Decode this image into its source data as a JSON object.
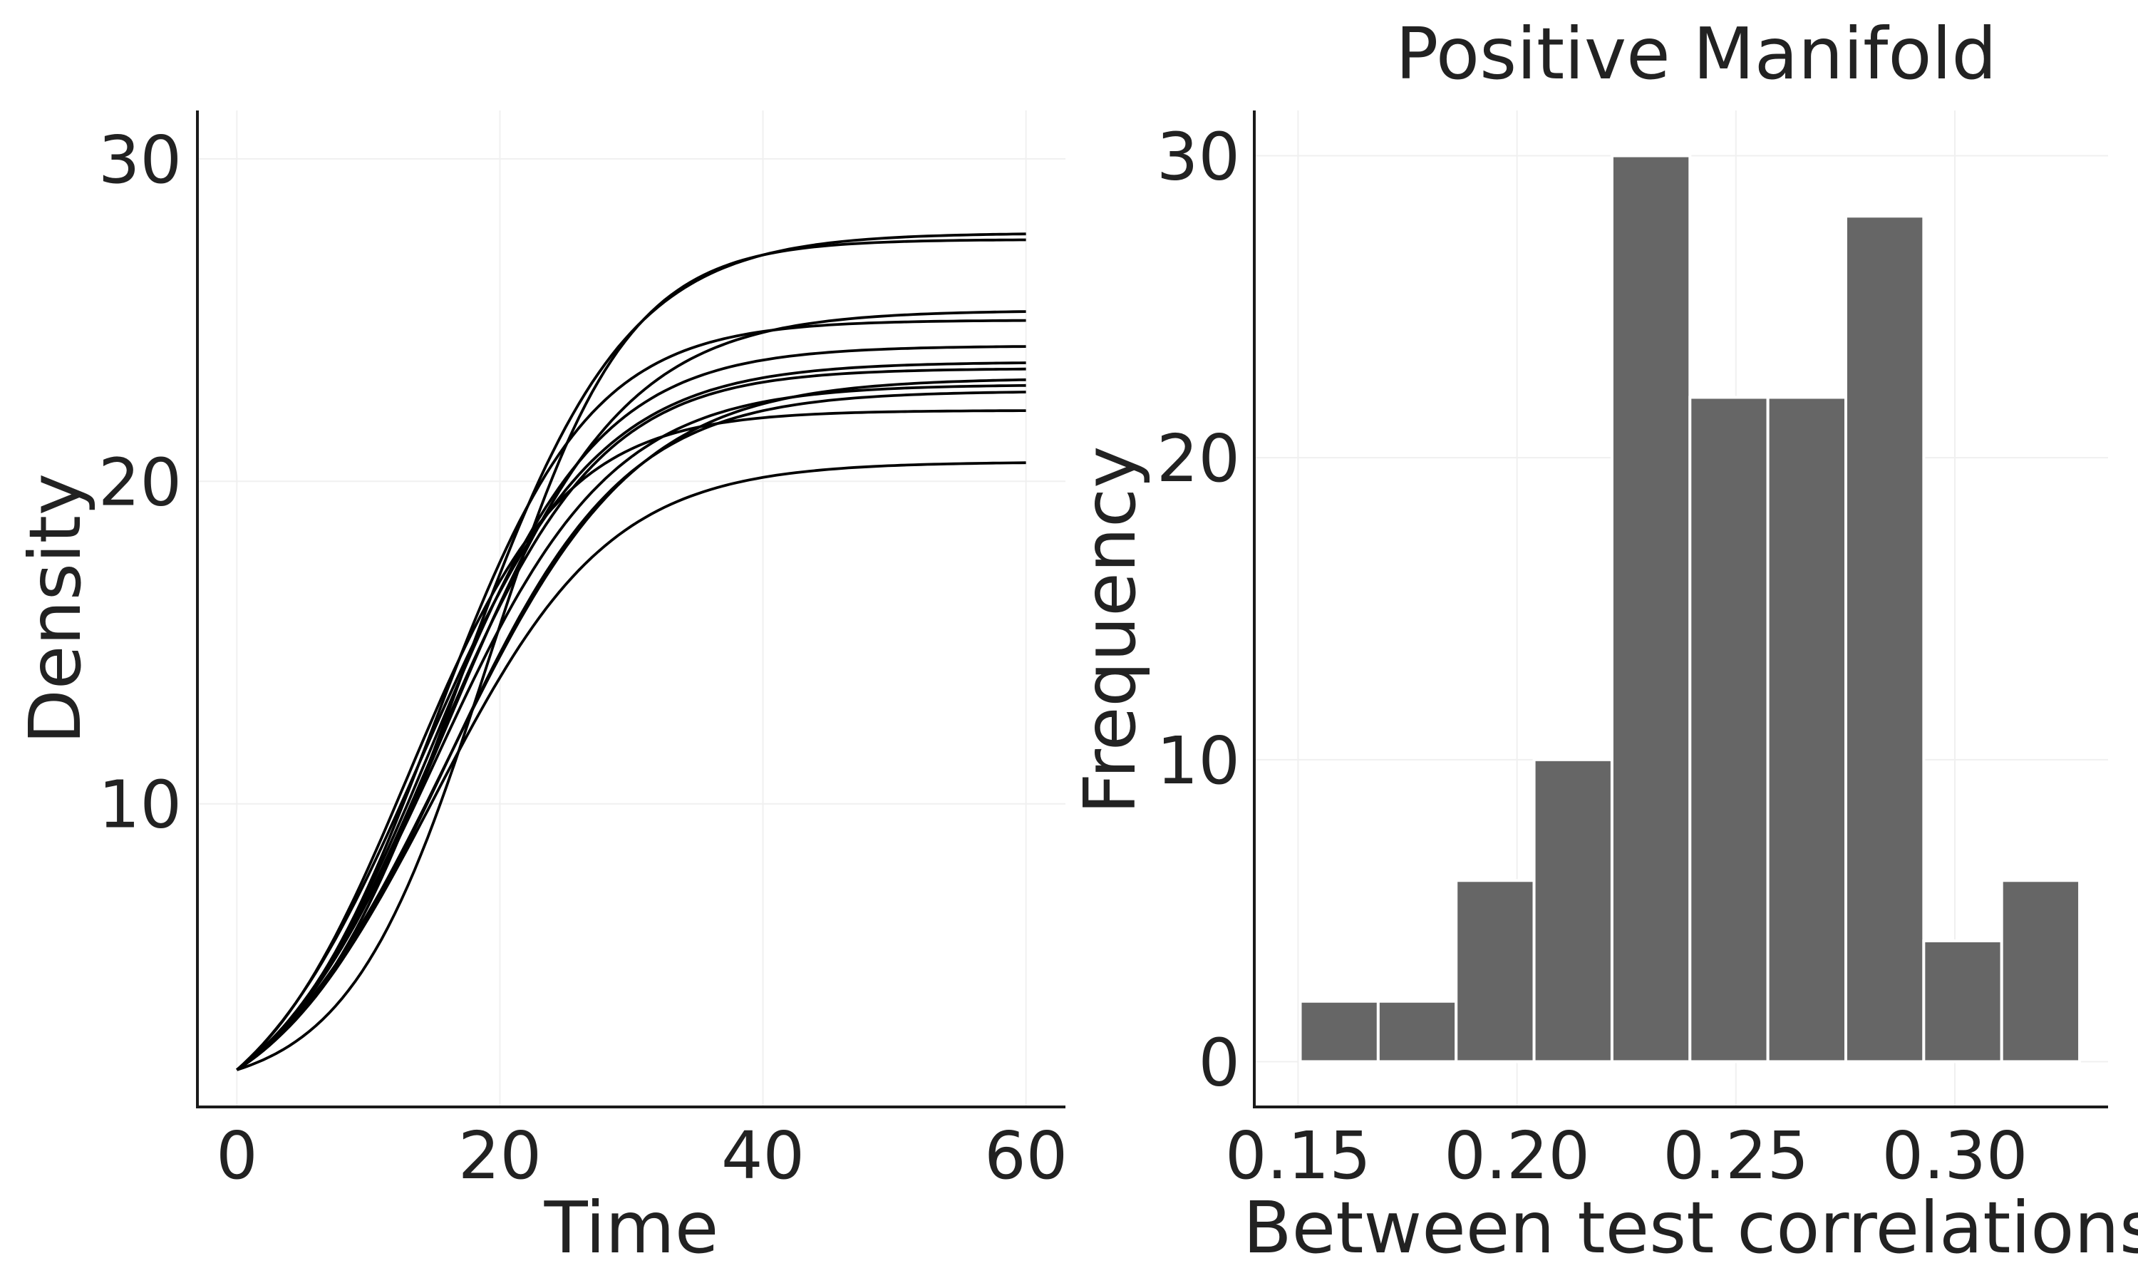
{
  "chart_data": [
    {
      "type": "line",
      "title": "",
      "xlabel": "Time",
      "ylabel": "Density",
      "xlim": [
        -3,
        63
      ],
      "ylim": [
        0.6,
        31.5
      ],
      "xticks": [
        0,
        20,
        40,
        60
      ],
      "yticks": [
        10,
        20,
        30
      ],
      "grid": true,
      "legend": "none",
      "series": [
        {
          "K": 27.7,
          "r": 0.16,
          "t0": 17
        },
        {
          "K": 27.5,
          "r": 0.19,
          "t0": 19
        },
        {
          "K": 25.3,
          "r": 0.15,
          "t0": 16
        },
        {
          "K": 25.0,
          "r": 0.17,
          "t0": 15
        },
        {
          "K": 24.2,
          "r": 0.16,
          "t0": 15
        },
        {
          "K": 23.7,
          "r": 0.15,
          "t0": 14
        },
        {
          "K": 23.5,
          "r": 0.16,
          "t0": 15
        },
        {
          "K": 23.2,
          "r": 0.14,
          "t0": 16
        },
        {
          "K": 23.0,
          "r": 0.15,
          "t0": 15
        },
        {
          "K": 22.8,
          "r": 0.15,
          "t0": 16
        },
        {
          "K": 22.2,
          "r": 0.17,
          "t0": 13
        },
        {
          "K": 20.6,
          "r": 0.15,
          "t0": 15
        }
      ]
    },
    {
      "type": "bar",
      "title": "Positive Manifold",
      "xlabel": "Between test correlations",
      "ylabel": "Frequency",
      "xlim": [
        0.14,
        0.335
      ],
      "ylim": [
        -1.5,
        31.5
      ],
      "xticks": [
        "0.15",
        "0.20",
        "0.25",
        "0.30"
      ],
      "yticks": [
        "0",
        "10",
        "20",
        "30"
      ],
      "grid": true,
      "bin_width": 0.0178,
      "bin_start": 0.1505,
      "values": [
        2,
        2,
        6,
        10,
        30,
        22,
        22,
        28,
        4,
        6
      ]
    }
  ]
}
